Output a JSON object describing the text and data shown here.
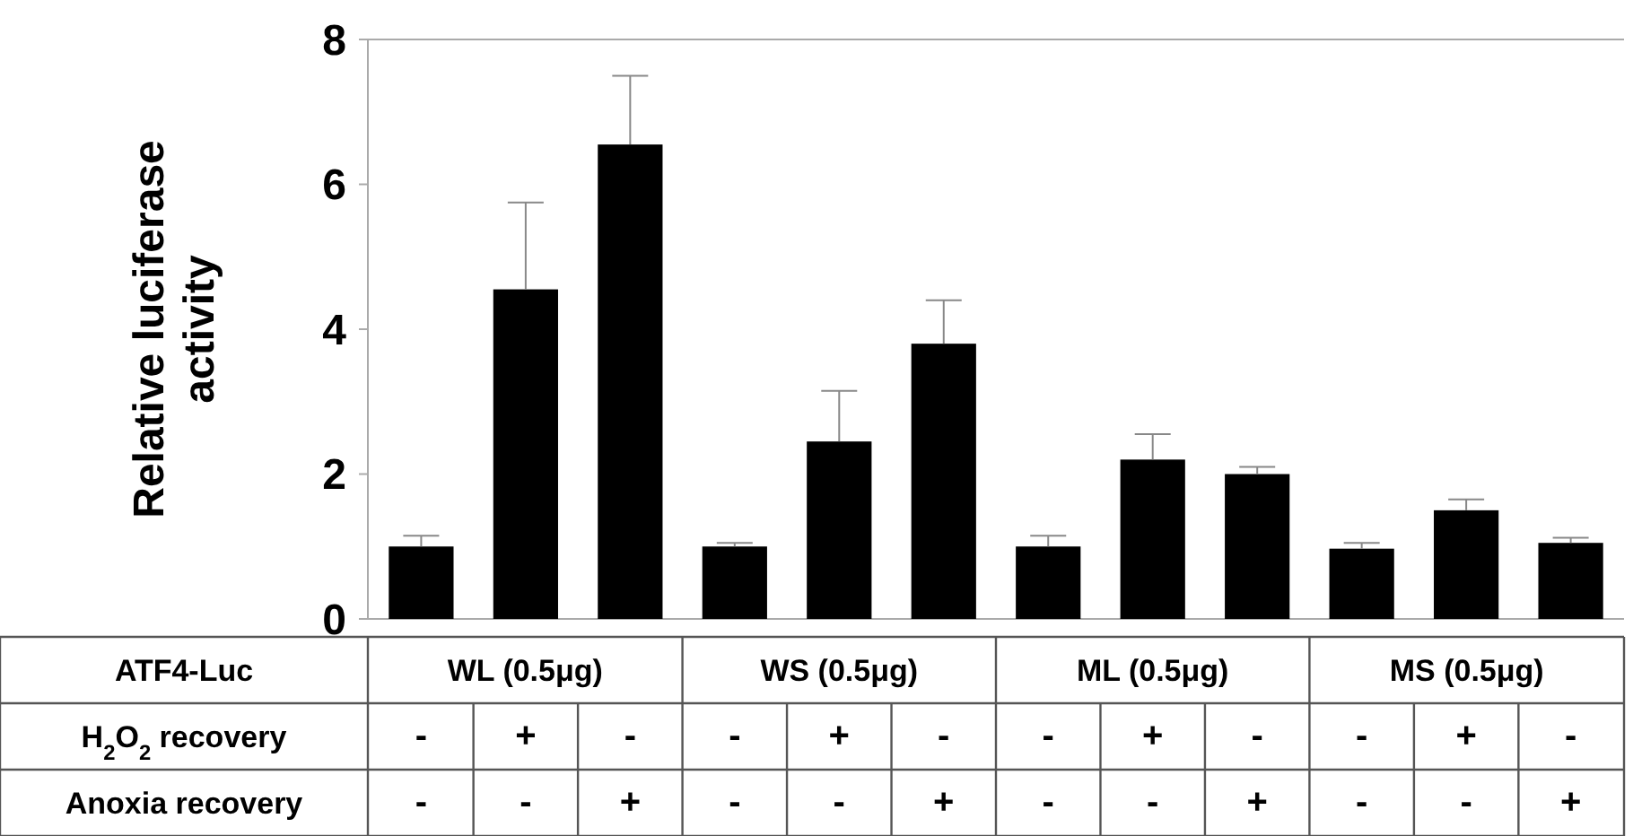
{
  "chart_data": {
    "type": "bar",
    "ylabel": "Relative luciferase activity",
    "categories": [
      null,
      null,
      null,
      null,
      null,
      null,
      null,
      null,
      null,
      null,
      null,
      null
    ],
    "values": [
      1.0,
      4.55,
      6.55,
      1.0,
      2.45,
      3.8,
      1.0,
      2.2,
      2.0,
      0.97,
      1.5,
      1.05
    ],
    "errors": [
      [
        1.0,
        1.15
      ],
      [
        4.55,
        5.75
      ],
      [
        6.55,
        7.5
      ],
      [
        1.0,
        1.05
      ],
      [
        2.45,
        3.15
      ],
      [
        3.8,
        4.4
      ],
      [
        1.0,
        1.15
      ],
      [
        2.2,
        2.55
      ],
      [
        2.0,
        2.1
      ],
      [
        0.97,
        1.05
      ],
      [
        1.5,
        1.65
      ],
      [
        1.05,
        1.12
      ]
    ],
    "color": "#000000",
    "ylim": [
      0,
      8
    ],
    "yticks": [
      0,
      2,
      4,
      6,
      8
    ],
    "grid": false,
    "tick_labels": "y",
    "annotations": [
      "ATF4-Luc",
      "WL (0.5μg)",
      "WS (0.5μg)",
      "ML (0.5μg)",
      "MS (0.5μg)",
      "H$_{2}$O$_{2}$  recovery",
      "-",
      "+",
      "-",
      "-",
      "+",
      "-",
      "-",
      "+",
      "-",
      "-",
      "+",
      "-",
      "Anoxia recovery",
      "-",
      "-",
      "+",
      "-",
      "-",
      "+",
      "-",
      "-",
      "+",
      "-",
      "-",
      "+"
    ]
  }
}
